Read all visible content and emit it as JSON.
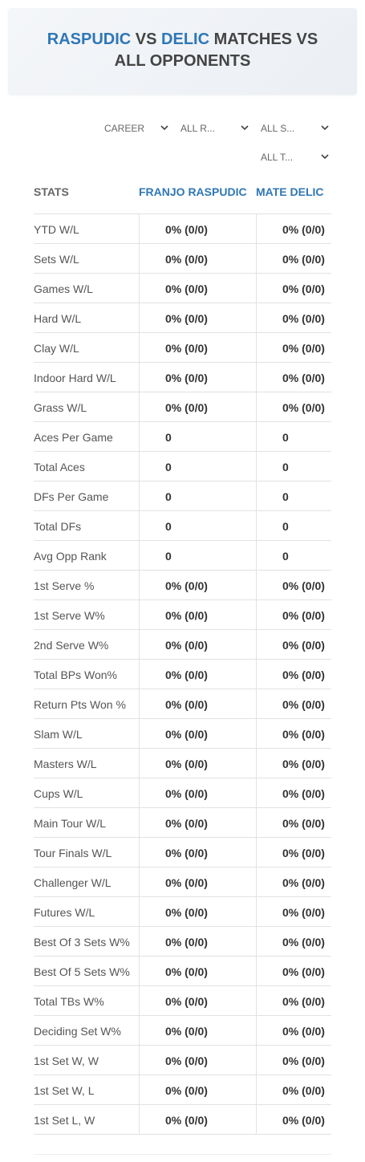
{
  "header": {
    "player1": "RASPUDIC",
    "vs": "VS",
    "player2": "DELIC",
    "line1_rest": "MATCHES VS",
    "line2": "ALL OPPONENTS"
  },
  "filters": [
    "CAREER",
    "ALL R...",
    "ALL S...",
    "ALL T..."
  ],
  "table": {
    "columns": [
      "STATS",
      "FRANJO RASPUDIC",
      "MATE DELIC"
    ],
    "rows": [
      [
        "YTD W/L",
        "0% (0/0)",
        "0% (0/0)"
      ],
      [
        "Sets W/L",
        "0% (0/0)",
        "0% (0/0)"
      ],
      [
        "Games W/L",
        "0% (0/0)",
        "0% (0/0)"
      ],
      [
        "Hard W/L",
        "0% (0/0)",
        "0% (0/0)"
      ],
      [
        "Clay W/L",
        "0% (0/0)",
        "0% (0/0)"
      ],
      [
        "Indoor Hard W/L",
        "0% (0/0)",
        "0% (0/0)"
      ],
      [
        "Grass W/L",
        "0% (0/0)",
        "0% (0/0)"
      ],
      [
        "Aces Per Game",
        "0",
        "0"
      ],
      [
        "Total Aces",
        "0",
        "0"
      ],
      [
        "DFs Per Game",
        "0",
        "0"
      ],
      [
        "Total DFs",
        "0",
        "0"
      ],
      [
        "Avg Opp Rank",
        "0",
        "0"
      ],
      [
        "1st Serve %",
        "0% (0/0)",
        "0% (0/0)"
      ],
      [
        "1st Serve W%",
        "0% (0/0)",
        "0% (0/0)"
      ],
      [
        "2nd Serve W%",
        "0% (0/0)",
        "0% (0/0)"
      ],
      [
        "Total BPs Won%",
        "0% (0/0)",
        "0% (0/0)"
      ],
      [
        "Return Pts Won %",
        "0% (0/0)",
        "0% (0/0)"
      ],
      [
        "Slam W/L",
        "0% (0/0)",
        "0% (0/0)"
      ],
      [
        "Masters W/L",
        "0% (0/0)",
        "0% (0/0)"
      ],
      [
        "Cups W/L",
        "0% (0/0)",
        "0% (0/0)"
      ],
      [
        "Main Tour W/L",
        "0% (0/0)",
        "0% (0/0)"
      ],
      [
        "Tour Finals W/L",
        "0% (0/0)",
        "0% (0/0)"
      ],
      [
        "Challenger W/L",
        "0% (0/0)",
        "0% (0/0)"
      ],
      [
        "Futures W/L",
        "0% (0/0)",
        "0% (0/0)"
      ],
      [
        "Best Of 3 Sets W%",
        "0% (0/0)",
        "0% (0/0)"
      ],
      [
        "Best Of 5 Sets W%",
        "0% (0/0)",
        "0% (0/0)"
      ],
      [
        "Total TBs W%",
        "0% (0/0)",
        "0% (0/0)"
      ],
      [
        "Deciding Set W%",
        "0% (0/0)",
        "0% (0/0)"
      ],
      [
        "1st Set W, W",
        "0% (0/0)",
        "0% (0/0)"
      ],
      [
        "1st Set W, L",
        "0% (0/0)",
        "0% (0/0)"
      ],
      [
        "1st Set L, W",
        "0% (0/0)",
        "0% (0/0)"
      ]
    ]
  }
}
